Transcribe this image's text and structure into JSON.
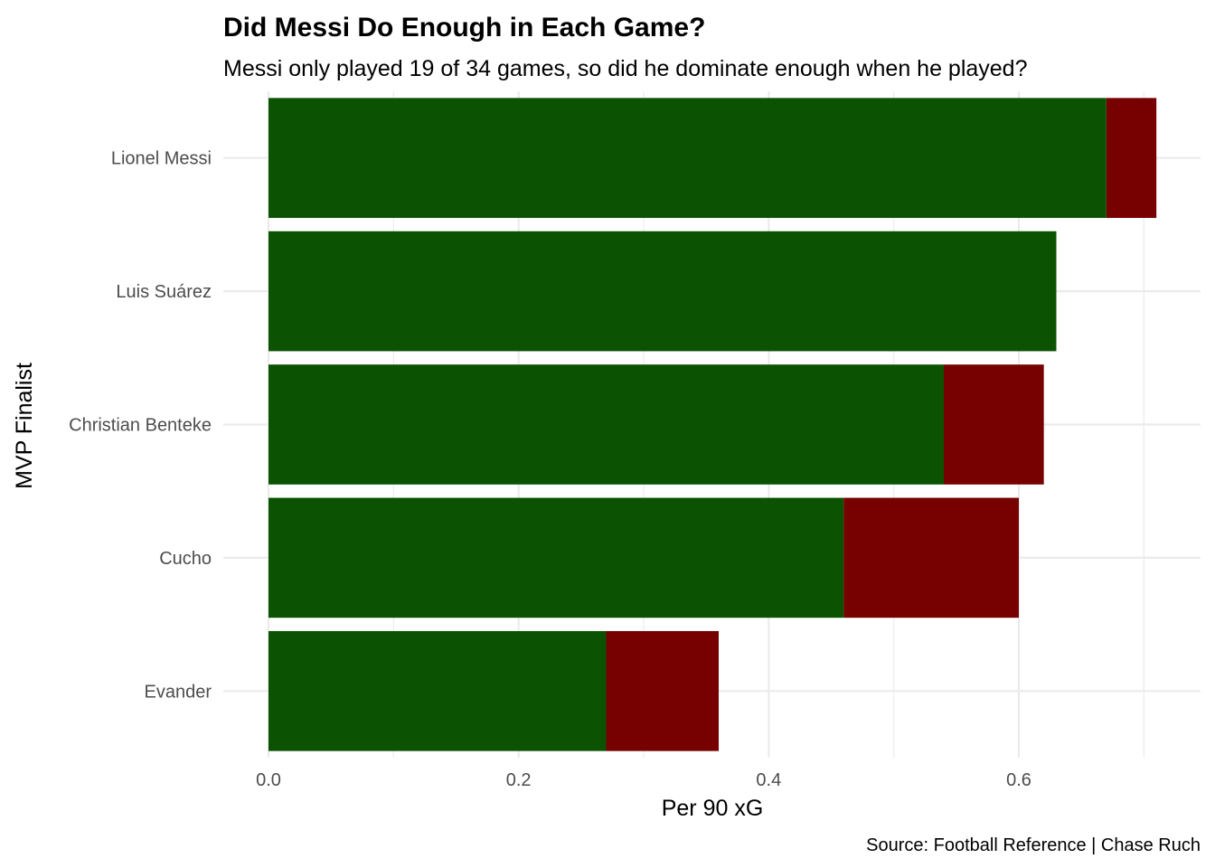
{
  "chart_data": {
    "type": "bar",
    "orientation": "horizontal",
    "stacked": true,
    "title": "Did Messi Do Enough in Each Game?",
    "subtitle": "Messi only played 19 of 34 games, so did he dominate enough when he played?",
    "xlabel": "Per 90 xG",
    "ylabel": "MVP Finalist",
    "caption": "Source: Football Reference | Chase Ruch",
    "categories": [
      "Lionel Messi",
      "Luis Suárez",
      "Christian Benteke",
      "Cucho",
      "Evander"
    ],
    "series": [
      {
        "color": "#0b5303",
        "values": [
          0.67,
          0.63,
          0.54,
          0.46,
          0.27
        ]
      },
      {
        "color": "#770000",
        "values": [
          0.04,
          0.0,
          0.08,
          0.14,
          0.09
        ]
      }
    ],
    "xlim": [
      0,
      0.745
    ],
    "xticks": [
      0.0,
      0.2,
      0.4,
      0.6
    ],
    "xtick_labels": [
      "0.0",
      "0.2",
      "0.4",
      "0.6"
    ],
    "grid": true,
    "legend": "none"
  }
}
